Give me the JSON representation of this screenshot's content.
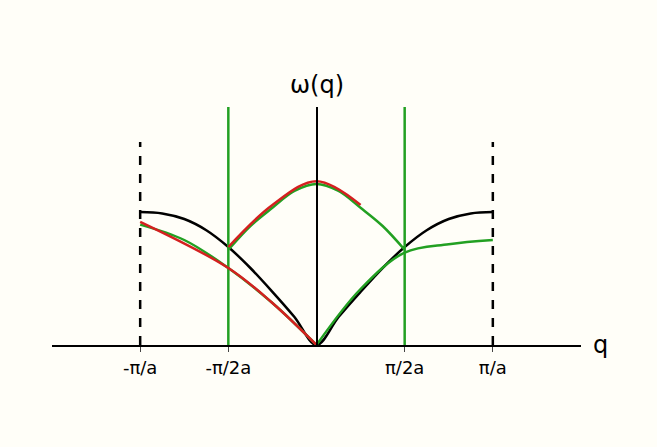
{
  "chart_data": {
    "type": "line",
    "x_label": "q",
    "y_label": "ω(q)",
    "xlim": [
      -1.5,
      1.5
    ],
    "ylim": [
      0,
      1.7
    ],
    "xticks": [
      {
        "value": -1,
        "label": "-π/a"
      },
      {
        "value": -0.5,
        "label": "-π/2a"
      },
      {
        "value": 0.5,
        "label": "π/2a"
      },
      {
        "value": 1,
        "label": "π/a"
      }
    ],
    "yticks": [],
    "tick_labels": "x",
    "grid": false,
    "series": [
      {
        "color": "#000000",
        "line_style": "dashed",
        "x": [
          -1,
          -1
        ],
        "values": [
          0,
          1.45
        ]
      },
      {
        "color": "#000000",
        "line_style": "dashed",
        "x": [
          1,
          1
        ],
        "values": [
          0,
          1.45
        ]
      },
      {
        "color": "#000000",
        "line_style": "solid",
        "x": [
          -1,
          -0.875,
          -0.75,
          -0.625,
          -0.5,
          -0.375,
          -0.25,
          -0.125,
          0,
          0.125,
          0.25,
          0.375,
          0.5,
          0.625,
          0.75,
          0.875,
          1
        ],
        "values": [
          0.95,
          0.94,
          0.9,
          0.82,
          0.7,
          0.55,
          0.38,
          0.2,
          0,
          0.2,
          0.38,
          0.55,
          0.7,
          0.82,
          0.9,
          0.94,
          0.95
        ]
      },
      {
        "color": "#22a022",
        "line_style": "solid",
        "x": [
          -0.5,
          -0.5
        ],
        "values": [
          0,
          1.7
        ]
      },
      {
        "color": "#22a022",
        "line_style": "solid",
        "x": [
          0.5,
          0.5
        ],
        "values": [
          0,
          1.7
        ]
      },
      {
        "color": "#22a022",
        "line_style": "solid",
        "x": [
          -0.5,
          -0.375,
          -0.25,
          -0.125,
          0,
          0.125,
          0.25,
          0.375,
          0.5
        ],
        "values": [
          0.68,
          0.85,
          0.98,
          1.1,
          1.15,
          1.1,
          0.98,
          0.85,
          0.68
        ]
      },
      {
        "color": "#22a022",
        "line_style": "solid",
        "x": [
          -1,
          -0.75,
          -0.5,
          -0.25,
          0
        ],
        "values": [
          0.86,
          0.75,
          0.55,
          0.3,
          0
        ]
      },
      {
        "color": "#22a022",
        "line_style": "solid",
        "x": [
          0,
          0.25,
          0.5,
          0.75,
          1
        ],
        "values": [
          0,
          0.4,
          0.66,
          0.72,
          0.75
        ]
      },
      {
        "color": "#d42020",
        "line_style": "solid",
        "x": [
          -0.5,
          -0.25,
          0,
          0.25
        ],
        "values": [
          0.7,
          1.0,
          1.17,
          1.0
        ]
      },
      {
        "color": "#d42020",
        "line_style": "solid",
        "x": [
          -1,
          -0.5,
          -0.25,
          0
        ],
        "values": [
          0.88,
          0.55,
          0.3,
          0
        ]
      }
    ]
  }
}
